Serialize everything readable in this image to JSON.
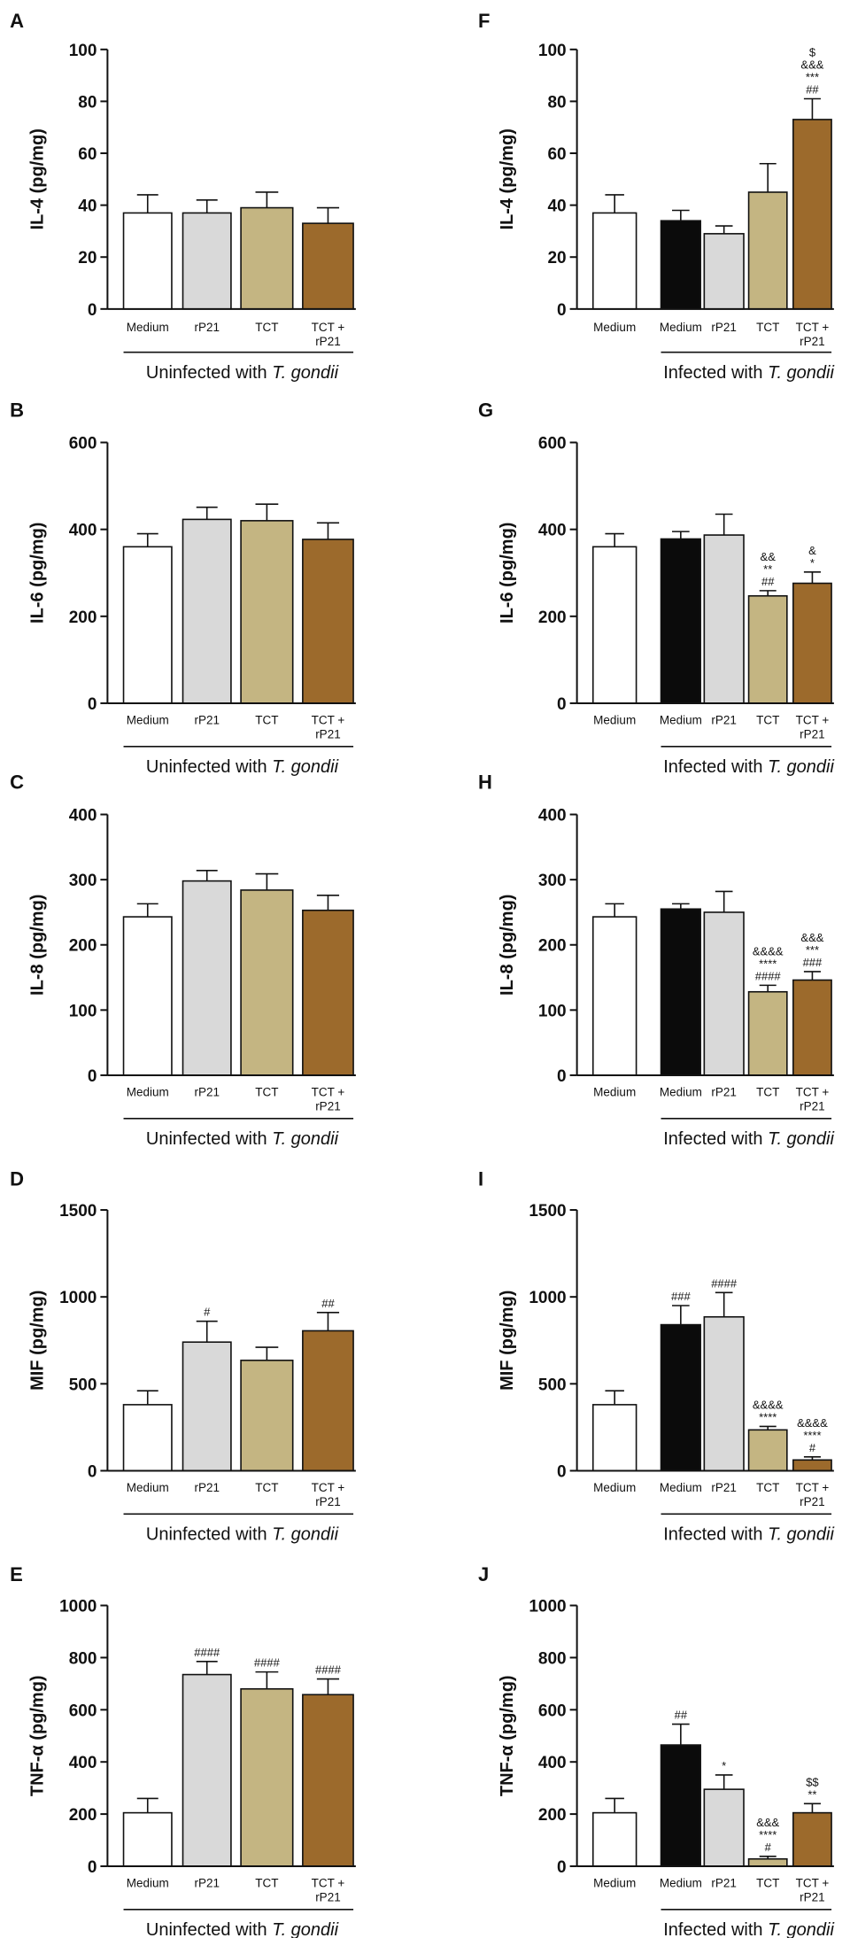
{
  "chart_data": [
    {
      "panel": "A",
      "type": "bar",
      "ylabel": "IL-4 (pg/mg)",
      "ylim": [
        0,
        100
      ],
      "yticks": [
        0,
        20,
        40,
        60,
        80,
        100
      ],
      "group_prefix": "Uninfected with ",
      "group_italic": "T. gondii",
      "categories": [
        "Medium",
        "rP21",
        "TCT",
        "TCT +\nrP21"
      ],
      "values": [
        37,
        37,
        39,
        33
      ],
      "errors": [
        7,
        5,
        6,
        6
      ],
      "colors": [
        "#ffffff",
        "#d9d9d9",
        "#c4b582",
        "#9c6a2c"
      ],
      "annotations": [
        "",
        "",
        "",
        ""
      ]
    },
    {
      "panel": "B",
      "type": "bar",
      "ylabel": "IL-6 (pg/mg)",
      "ylim": [
        0,
        600
      ],
      "yticks": [
        0,
        200,
        400,
        600
      ],
      "group_prefix": "Uninfected with ",
      "group_italic": "T. gondii",
      "categories": [
        "Medium",
        "rP21",
        "TCT",
        "TCT +\nrP21"
      ],
      "values": [
        360,
        423,
        420,
        377
      ],
      "errors": [
        30,
        28,
        38,
        38
      ],
      "colors": [
        "#ffffff",
        "#d9d9d9",
        "#c4b582",
        "#9c6a2c"
      ],
      "annotations": [
        "",
        "",
        "",
        ""
      ]
    },
    {
      "panel": "C",
      "type": "bar",
      "ylabel": "IL-8 (pg/mg)",
      "ylim": [
        0,
        400
      ],
      "yticks": [
        0,
        100,
        200,
        300,
        400
      ],
      "group_prefix": "Uninfected with ",
      "group_italic": "T. gondii",
      "categories": [
        "Medium",
        "rP21",
        "TCT",
        "TCT +\nrP21"
      ],
      "values": [
        243,
        298,
        284,
        253
      ],
      "errors": [
        20,
        16,
        25,
        23
      ],
      "colors": [
        "#ffffff",
        "#d9d9d9",
        "#c4b582",
        "#9c6a2c"
      ],
      "annotations": [
        "",
        "",
        "",
        ""
      ]
    },
    {
      "panel": "D",
      "type": "bar",
      "ylabel": "MIF (pg/mg)",
      "ylim": [
        0,
        1500
      ],
      "yticks": [
        0,
        500,
        1000,
        1500
      ],
      "group_prefix": "Uninfected with ",
      "group_italic": "T. gondii",
      "categories": [
        "Medium",
        "rP21",
        "TCT",
        "TCT +\nrP21"
      ],
      "values": [
        380,
        740,
        635,
        805
      ],
      "errors": [
        80,
        120,
        75,
        105
      ],
      "colors": [
        "#ffffff",
        "#d9d9d9",
        "#c4b582",
        "#9c6a2c"
      ],
      "annotations": [
        "",
        "#",
        "",
        "##"
      ]
    },
    {
      "panel": "E",
      "type": "bar",
      "ylabel": "TNF-α (pg/mg)",
      "ylim": [
        0,
        1000
      ],
      "yticks": [
        0,
        200,
        400,
        600,
        800,
        1000
      ],
      "group_prefix": "Uninfected with ",
      "group_italic": "T. gondii",
      "categories": [
        "Medium",
        "rP21",
        "TCT",
        "TCT +\nrP21"
      ],
      "values": [
        205,
        735,
        680,
        658
      ],
      "errors": [
        55,
        50,
        65,
        60
      ],
      "colors": [
        "#ffffff",
        "#d9d9d9",
        "#c4b582",
        "#9c6a2c"
      ],
      "annotations": [
        "",
        "####",
        "####",
        "####"
      ]
    },
    {
      "panel": "F",
      "type": "bar",
      "ylabel": "IL-4 (pg/mg)",
      "ylim": [
        0,
        100
      ],
      "yticks": [
        0,
        20,
        40,
        60,
        80,
        100
      ],
      "group_prefix": "Infected with ",
      "group_italic": "T. gondii",
      "categories": [
        "Medium",
        "Medium",
        "rP21",
        "TCT",
        "TCT +\nrP21"
      ],
      "values": [
        37,
        34,
        29,
        45,
        73
      ],
      "errors": [
        7,
        4,
        3,
        11,
        8
      ],
      "colors": [
        "#ffffff",
        "#0b0b0b",
        "#d9d9d9",
        "#c4b582",
        "#9c6a2c"
      ],
      "annotations": [
        "",
        "",
        "",
        "",
        "$\n&&&\n***\n##"
      ]
    },
    {
      "panel": "G",
      "type": "bar",
      "ylabel": "IL-6 (pg/mg)",
      "ylim": [
        0,
        600
      ],
      "yticks": [
        0,
        200,
        400,
        600
      ],
      "group_prefix": "Infected with ",
      "group_italic": "T. gondii",
      "categories": [
        "Medium",
        "Medium",
        "rP21",
        "TCT",
        "TCT +\nrP21"
      ],
      "values": [
        360,
        378,
        387,
        247,
        276
      ],
      "errors": [
        30,
        17,
        48,
        12,
        26
      ],
      "colors": [
        "#ffffff",
        "#0b0b0b",
        "#d9d9d9",
        "#c4b582",
        "#9c6a2c"
      ],
      "annotations": [
        "",
        "",
        "",
        "&&\n**\n##",
        "&\n*"
      ]
    },
    {
      "panel": "H",
      "type": "bar",
      "ylabel": "IL-8 (pg/mg)",
      "ylim": [
        0,
        400
      ],
      "yticks": [
        0,
        100,
        200,
        300,
        400
      ],
      "group_prefix": "Infected with ",
      "group_italic": "T. gondii",
      "categories": [
        "Medium",
        "Medium",
        "rP21",
        "TCT",
        "TCT +\nrP21"
      ],
      "values": [
        243,
        255,
        250,
        128,
        146
      ],
      "errors": [
        20,
        8,
        32,
        10,
        13
      ],
      "colors": [
        "#ffffff",
        "#0b0b0b",
        "#d9d9d9",
        "#c4b582",
        "#9c6a2c"
      ],
      "annotations": [
        "",
        "",
        "",
        "&&&&\n****\n####",
        "&&&\n***\n###"
      ]
    },
    {
      "panel": "I",
      "type": "bar",
      "ylabel": "MIF (pg/mg)",
      "ylim": [
        0,
        1500
      ],
      "yticks": [
        0,
        500,
        1000,
        1500
      ],
      "group_prefix": "Infected with ",
      "group_italic": "T. gondii",
      "categories": [
        "Medium",
        "Medium",
        "rP21",
        "TCT",
        "TCT +\nrP21"
      ],
      "values": [
        380,
        840,
        885,
        235,
        62
      ],
      "errors": [
        80,
        110,
        140,
        20,
        18
      ],
      "colors": [
        "#ffffff",
        "#0b0b0b",
        "#d9d9d9",
        "#c4b582",
        "#9c6a2c"
      ],
      "annotations": [
        "",
        "###",
        "####",
        "&&&&\n****",
        "&&&&\n****\n#"
      ]
    },
    {
      "panel": "J",
      "type": "bar",
      "ylabel": "TNF-α (pg/mg)",
      "ylim": [
        0,
        1000
      ],
      "yticks": [
        0,
        200,
        400,
        600,
        800,
        1000
      ],
      "group_prefix": "Infected with ",
      "group_italic": "T. gondii",
      "categories": [
        "Medium",
        "Medium",
        "rP21",
        "TCT",
        "TCT +\nrP21"
      ],
      "values": [
        205,
        465,
        295,
        28,
        205
      ],
      "errors": [
        55,
        80,
        55,
        10,
        35
      ],
      "colors": [
        "#ffffff",
        "#0b0b0b",
        "#d9d9d9",
        "#c4b582",
        "#9c6a2c"
      ],
      "annotations": [
        "",
        "##",
        "*",
        "&&&\n****\n#",
        "$$\n**"
      ]
    }
  ]
}
